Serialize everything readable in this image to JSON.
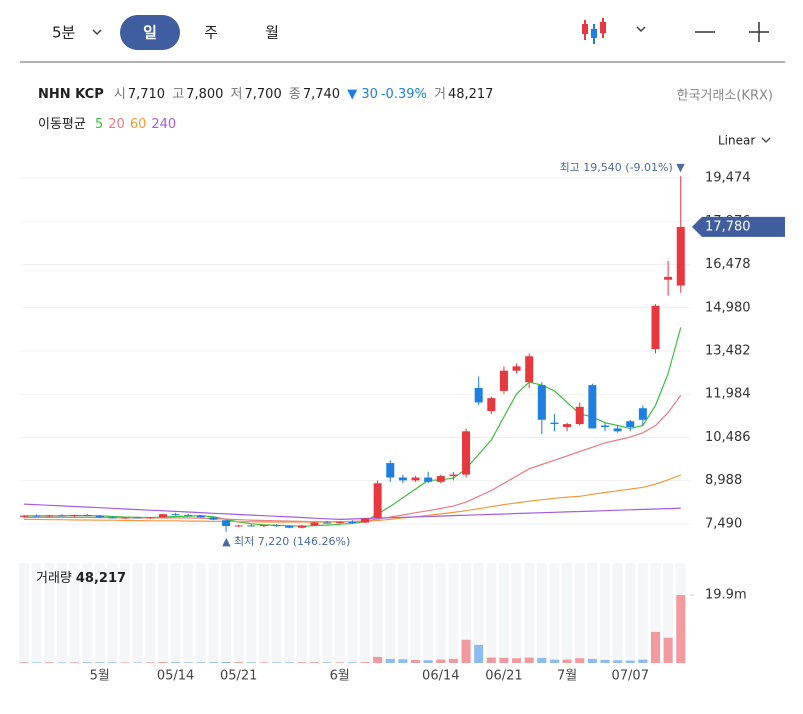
{
  "toolbar": {
    "intervals": [
      "5분",
      "일",
      "주",
      "월"
    ]
  },
  "quote": {
    "name": "NHN KCP",
    "items": [
      {
        "label": "시",
        "value": "7,710"
      },
      {
        "label": "고",
        "value": "7,800"
      },
      {
        "label": "저",
        "value": "7,700"
      },
      {
        "label": "종",
        "value": "7,740"
      }
    ],
    "change": "▼ 30",
    "change_pct": "-0.39%",
    "volume_label": "거",
    "volume_value": "48,217",
    "exchange": "한국거래소(KRX)"
  },
  "chart_data": {
    "type": "candlestick",
    "scale": "Linear",
    "legend_title": "이동평균",
    "categories": [
      null,
      null,
      null,
      null,
      null,
      null,
      "5월",
      null,
      null,
      null,
      null,
      null,
      "05/14",
      null,
      null,
      null,
      null,
      "05/21",
      null,
      null,
      null,
      null,
      null,
      null,
      null,
      "6월",
      null,
      null,
      null,
      null,
      null,
      null,
      null,
      "06/14",
      null,
      null,
      null,
      null,
      "06/21",
      null,
      null,
      null,
      null,
      "7월",
      null,
      null,
      null,
      null,
      "07/07",
      null,
      null,
      null,
      null
    ],
    "open": [
      7740,
      7780,
      7760,
      7790,
      7770,
      7800,
      7780,
      7720,
      7700,
      7720,
      7690,
      7720,
      7830,
      7800,
      7780,
      7720,
      7620,
      7420,
      7440,
      7420,
      7450,
      7420,
      7360,
      7440,
      7540,
      7520,
      7560,
      7540,
      7700,
      9600,
      9100,
      9000,
      9100,
      8950,
      9150,
      9200,
      12200,
      11400,
      12100,
      12800,
      12400,
      12300,
      11000,
      10850,
      10950,
      12300,
      10900,
      10800,
      11050,
      11500,
      13550,
      15950,
      15750
    ],
    "high": [
      7800,
      7820,
      7800,
      7830,
      7810,
      7840,
      7800,
      7760,
      7740,
      7750,
      7740,
      7850,
      7880,
      7840,
      7800,
      7740,
      7640,
      7460,
      7480,
      7460,
      7480,
      7440,
      7460,
      7560,
      7600,
      7580,
      7620,
      7700,
      9000,
      9700,
      9200,
      9150,
      9300,
      9200,
      9300,
      10800,
      12600,
      11900,
      12950,
      13050,
      13400,
      12400,
      11300,
      11000,
      11700,
      12350,
      11000,
      10900,
      11100,
      11600,
      15100,
      16600,
      19540
    ],
    "low": [
      7700,
      7740,
      7720,
      7750,
      7730,
      7760,
      7700,
      7680,
      7660,
      7680,
      7660,
      7700,
      7780,
      7760,
      7700,
      7620,
      7220,
      7380,
      7400,
      7380,
      7400,
      7340,
      7340,
      7420,
      7500,
      7480,
      7520,
      7520,
      7680,
      8950,
      8900,
      8950,
      8900,
      8900,
      9000,
      9100,
      11600,
      11300,
      12000,
      12700,
      12200,
      10600,
      10700,
      10700,
      10900,
      10800,
      10700,
      10650,
      10700,
      10900,
      13400,
      15400,
      15500
    ],
    "close": [
      7780,
      7760,
      7790,
      7770,
      7800,
      7780,
      7720,
      7700,
      7720,
      7690,
      7720,
      7830,
      7800,
      7780,
      7720,
      7640,
      7420,
      7440,
      7420,
      7450,
      7420,
      7360,
      7440,
      7540,
      7520,
      7560,
      7540,
      7680,
      8900,
      9100,
      9000,
      9100,
      8950,
      9150,
      9200,
      10700,
      11700,
      11850,
      12800,
      12950,
      13300,
      11100,
      10950,
      10950,
      11550,
      10800,
      10850,
      10700,
      10850,
      11100,
      15050,
      16050,
      17780
    ],
    "up_color": "#e8373e",
    "down_color": "#1e7fe0",
    "ylim": [
      6416,
      20444
    ],
    "yticks": [
      {
        "value": 7490,
        "label": "7,490"
      },
      {
        "value": 8988,
        "label": "8,988"
      },
      {
        "value": 10486,
        "label": "10,486"
      },
      {
        "value": 11984,
        "label": "11,984"
      },
      {
        "value": 13482,
        "label": "13,482"
      },
      {
        "value": 14980,
        "label": "14,980"
      },
      {
        "value": 16478,
        "label": "16,478"
      },
      {
        "value": 17976,
        "label": "17,976"
      },
      {
        "value": 19474,
        "label": "19,474"
      }
    ],
    "grid": true,
    "high_label": "최고 19,540 (-9.01%) ▼",
    "low_label": "▲ 최저 7,220 (146.26%)",
    "price_marker": {
      "value": 17780,
      "label": "17,780"
    },
    "price_marker_color": "#3f5d9f",
    "series": [
      {
        "name": "5",
        "color": "#3fbf3f",
        "values": [
          7770,
          7775,
          7770,
          7775,
          7780,
          7780,
          7770,
          7750,
          7730,
          7720,
          7710,
          7730,
          7750,
          7760,
          7780,
          7740,
          7650,
          7560,
          7500,
          7460,
          7440,
          7430,
          7410,
          7430,
          7450,
          7480,
          7510,
          7570,
          7840,
          8100,
          8400,
          8700,
          9000,
          9020,
          9080,
          9400,
          9900,
          10400,
          11200,
          12000,
          12400,
          12300,
          12100,
          11700,
          11300,
          11200,
          11000,
          10900,
          10800,
          10900,
          11600,
          12700,
          14300
        ]
      },
      {
        "name": "20",
        "color": "#f07a7e",
        "values": [
          7720,
          7720,
          7720,
          7720,
          7720,
          7720,
          7710,
          7710,
          7700,
          7700,
          7700,
          7700,
          7700,
          7700,
          7690,
          7680,
          7660,
          7640,
          7620,
          7610,
          7600,
          7590,
          7580,
          7570,
          7570,
          7570,
          7580,
          7600,
          7660,
          7730,
          7800,
          7880,
          7950,
          8030,
          8110,
          8250,
          8450,
          8650,
          8900,
          9150,
          9400,
          9550,
          9700,
          9850,
          10000,
          10150,
          10300,
          10400,
          10500,
          10650,
          10900,
          11350,
          11950
        ]
      },
      {
        "name": "60",
        "color": "#f39a3c",
        "values": [
          7650,
          7650,
          7640,
          7640,
          7630,
          7630,
          7620,
          7620,
          7610,
          7610,
          7600,
          7600,
          7600,
          7590,
          7590,
          7580,
          7580,
          7570,
          7570,
          7560,
          7560,
          7560,
          7560,
          7560,
          7560,
          7570,
          7570,
          7580,
          7610,
          7650,
          7700,
          7740,
          7790,
          7840,
          7890,
          7950,
          8020,
          8090,
          8160,
          8220,
          8280,
          8330,
          8380,
          8420,
          8450,
          8520,
          8580,
          8640,
          8700,
          8760,
          8870,
          9020,
          9190
        ]
      },
      {
        "name": "240",
        "color": "#a55ee0",
        "values": [
          8180,
          8159,
          8138,
          8116,
          8095,
          8074,
          8053,
          8032,
          8010,
          7989,
          7968,
          7947,
          7926,
          7904,
          7883,
          7862,
          7841,
          7820,
          7798,
          7777,
          7756,
          7735,
          7714,
          7692,
          7671,
          7650,
          7664,
          7679,
          7693,
          7708,
          7722,
          7736,
          7751,
          7765,
          7780,
          7794,
          7808,
          7823,
          7837,
          7852,
          7866,
          7880,
          7895,
          7909,
          7924,
          7938,
          7952,
          7967,
          7981,
          7996,
          8010,
          8024,
          8040
        ]
      }
    ],
    "volume": {
      "title": "거래량",
      "value_text": "48,217",
      "up_color": "#f29a9e",
      "down_color": "#8dbdf0",
      "ylim": [
        0,
        29300000
      ],
      "yticks": [
        {
          "value": 19900000,
          "label": "19.9m"
        }
      ],
      "values": [
        200000,
        180000,
        220000,
        150000,
        190000,
        210000,
        240000,
        200000,
        170000,
        160000,
        180000,
        260000,
        230000,
        190000,
        200000,
        230000,
        300000,
        250000,
        180000,
        170000,
        190000,
        220000,
        210000,
        240000,
        200000,
        180000,
        190000,
        260000,
        1800000,
        1200000,
        1100000,
        900000,
        800000,
        1000000,
        1200000,
        6800000,
        5300000,
        1600000,
        1500000,
        1400000,
        1600000,
        1500000,
        1000000,
        1000000,
        1400000,
        1200000,
        900000,
        800000,
        700000,
        1000000,
        9100000,
        7400000,
        19900000
      ]
    }
  }
}
